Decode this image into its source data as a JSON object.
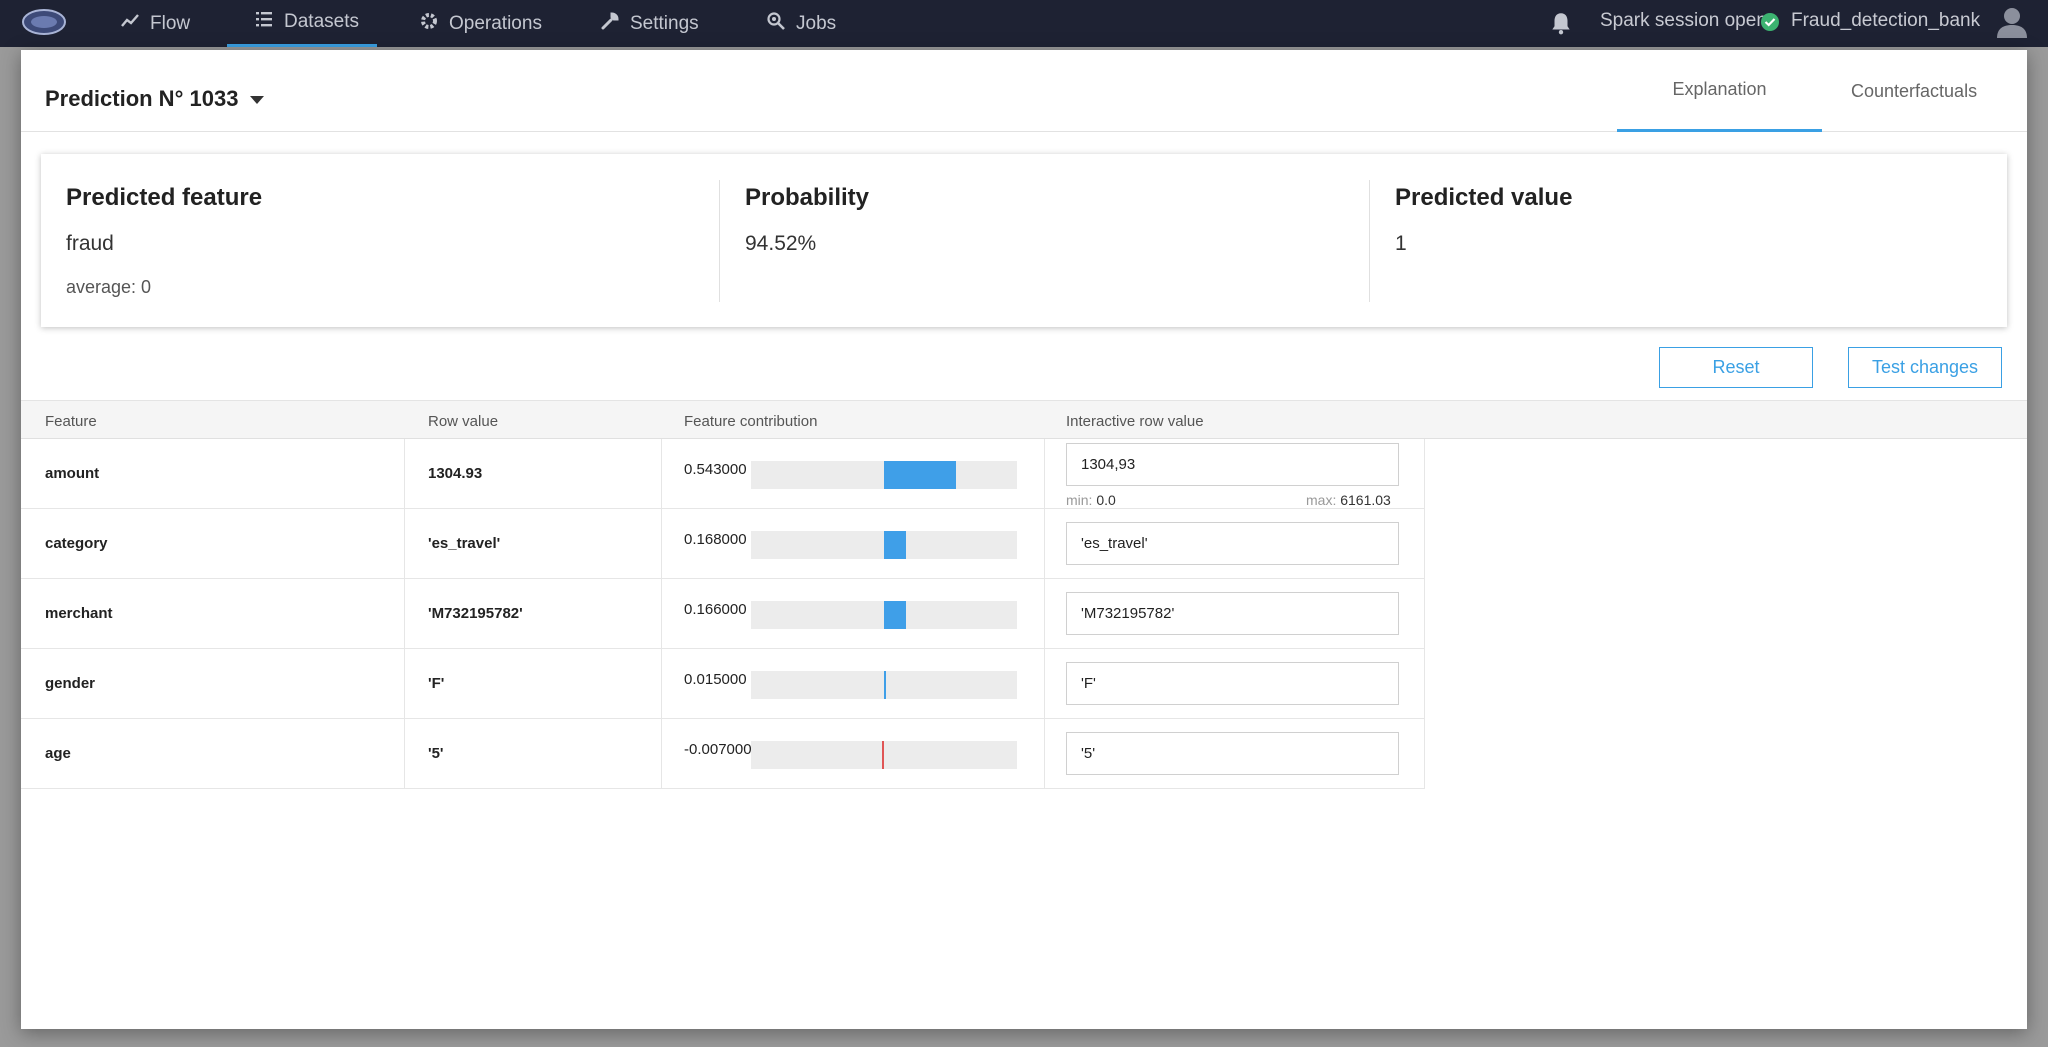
{
  "navbar": {
    "items": [
      {
        "label": "Flow",
        "icon": "trend-icon"
      },
      {
        "label": "Datasets",
        "icon": "list-icon",
        "active": true
      },
      {
        "label": "Operations",
        "icon": "gear-icon"
      },
      {
        "label": "Settings",
        "icon": "wrench-icon"
      },
      {
        "label": "Jobs",
        "icon": "search-gear-icon"
      }
    ],
    "session_status": "Spark session open",
    "project_name": "Fraud_detection_bank",
    "accent_color": "#3aa0e4",
    "status_color": "#3cb371"
  },
  "modal": {
    "title": "Prediction N° 1033",
    "tabs": [
      {
        "label": "Explanation",
        "active": true
      },
      {
        "label": "Counterfactuals",
        "active": false
      }
    ],
    "summary": {
      "predicted_feature_title": "Predicted feature",
      "predicted_feature_value": "fraud",
      "predicted_feature_average": "average: 0",
      "probability_title": "Probability",
      "probability_value": "94.52%",
      "predicted_value_title": "Predicted value",
      "predicted_value_value": "1"
    },
    "buttons": {
      "reset": "Reset",
      "test_changes": "Test changes"
    },
    "table": {
      "headers": [
        "Feature",
        "Row value",
        "Feature contribution",
        "Interactive row value"
      ],
      "rows": [
        {
          "feature": "amount",
          "row_value": "1304.93",
          "contribution": "0.543000",
          "contribution_num": 0.543,
          "input_value": "1304,93",
          "min_label": "min:",
          "min": "0.0",
          "max_label": "max:",
          "max": "6161.03"
        },
        {
          "feature": "category",
          "row_value": "'es_travel'",
          "contribution": "0.168000",
          "contribution_num": 0.168,
          "input_value": "'es_travel'"
        },
        {
          "feature": "merchant",
          "row_value": "'M732195782'",
          "contribution": "0.166000",
          "contribution_num": 0.166,
          "input_value": "'M732195782'"
        },
        {
          "feature": "gender",
          "row_value": "'F'",
          "contribution": "0.015000",
          "contribution_num": 0.015,
          "input_value": "'F'"
        },
        {
          "feature": "age",
          "row_value": "'5'",
          "contribution": "-0.007000",
          "contribution_num": -0.007,
          "input_value": "'5'"
        }
      ]
    }
  }
}
